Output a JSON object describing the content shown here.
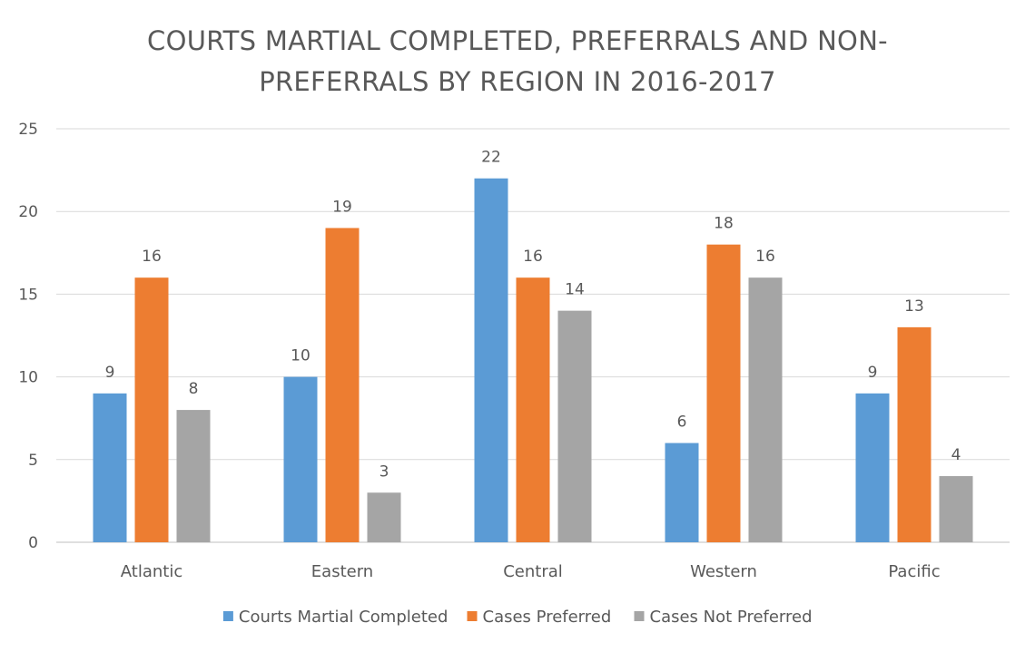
{
  "chart_data": {
    "type": "bar",
    "title_lines": [
      "COURTS MARTIAL COMPLETED, PREFERRALS AND NON-",
      "PREFERRALS BY REGION IN 2016-2017"
    ],
    "xlabel": "",
    "ylabel": "",
    "ylim": [
      0,
      25
    ],
    "yticks": [
      0,
      5,
      10,
      15,
      20,
      25
    ],
    "grid": true,
    "legend_position": "bottom",
    "categories": [
      "Atlantic",
      "Eastern",
      "Central",
      "Western",
      "Pacific"
    ],
    "series": [
      {
        "name": "Courts Martial Completed",
        "color": "#5B9BD5",
        "values": [
          9,
          10,
          22,
          6,
          9
        ]
      },
      {
        "name": "Cases Preferred",
        "color": "#ED7D31",
        "values": [
          16,
          19,
          16,
          18,
          13
        ]
      },
      {
        "name": "Cases Not Preferred",
        "color": "#A5A5A5",
        "values": [
          8,
          3,
          14,
          16,
          4
        ]
      }
    ]
  }
}
